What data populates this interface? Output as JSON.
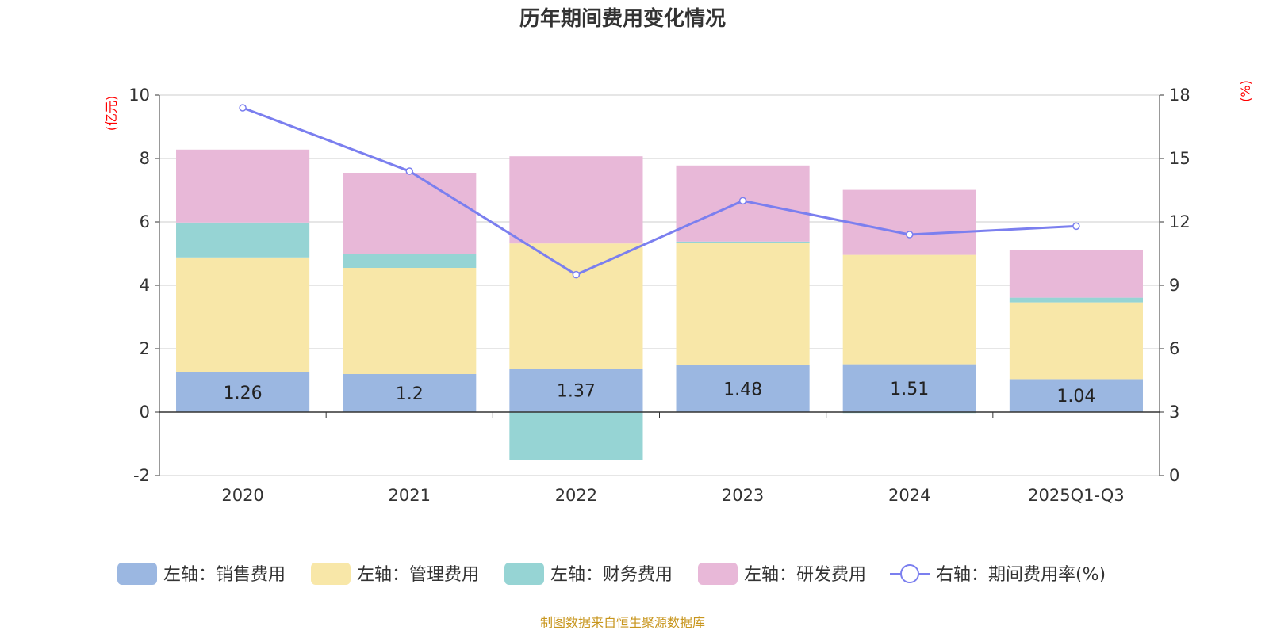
{
  "chart_data": {
    "type": "bar",
    "stacked": true,
    "title": "历年期间费用变化情况",
    "categories": [
      "2020",
      "2021",
      "2022",
      "2023",
      "2024",
      "2025Q1-Q3"
    ],
    "y_left": {
      "unit": "(亿元)",
      "min": -2,
      "max": 10,
      "ticks": [
        "-2",
        "0",
        "2",
        "4",
        "6",
        "8",
        "10"
      ]
    },
    "y_right": {
      "unit": "(%)",
      "min": 0,
      "max": 18,
      "ticks": [
        "0",
        "3",
        "6",
        "9",
        "12",
        "15",
        "18"
      ]
    },
    "series": [
      {
        "name": "左轴：销售费用",
        "axis": "left",
        "type": "bar",
        "color": "#9bb7e1",
        "values": [
          1.26,
          1.2,
          1.37,
          1.48,
          1.51,
          1.04
        ],
        "labels": [
          "1.26",
          "1.2",
          "1.37",
          "1.48",
          "1.51",
          "1.04"
        ]
      },
      {
        "name": "左轴：管理费用",
        "axis": "left",
        "type": "bar",
        "color": "#f8e7a8",
        "values": [
          3.62,
          3.35,
          3.95,
          3.85,
          3.45,
          2.42
        ]
      },
      {
        "name": "左轴：财务费用",
        "axis": "left",
        "type": "bar",
        "color": "#96d4d4",
        "values": [
          1.1,
          0.45,
          -1.5,
          0.05,
          -0.03,
          0.15
        ]
      },
      {
        "name": "左轴：研发费用",
        "axis": "left",
        "type": "bar",
        "color": "#e8b8d8",
        "values": [
          2.3,
          2.55,
          2.75,
          2.4,
          2.05,
          1.5
        ]
      },
      {
        "name": "右轴：期间费用率(%)",
        "axis": "right",
        "type": "line",
        "color": "#7b7fef",
        "values": [
          17.4,
          14.4,
          9.5,
          13.0,
          11.4,
          11.8
        ]
      }
    ],
    "grid": true,
    "legend_position": "bottom"
  },
  "source": "制图数据来自恒生聚源数据库"
}
